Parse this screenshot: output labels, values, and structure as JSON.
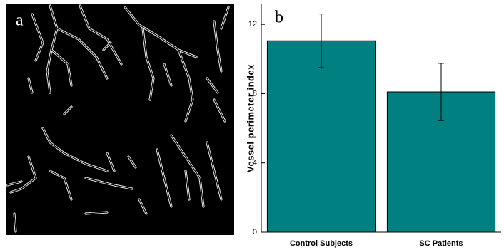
{
  "panel_a": {
    "label": "a"
  },
  "chart_data": {
    "type": "bar",
    "panel_label": "b",
    "y_label": "Vessel perimeter index",
    "categories": [
      "Control Subjects",
      "SC Patients"
    ],
    "values": [
      11.05,
      8.1
    ],
    "errors": [
      1.55,
      1.65
    ],
    "color": "#008080",
    "ylim": [
      0,
      13.2
    ],
    "yticks": [
      0,
      4,
      8,
      12
    ]
  }
}
